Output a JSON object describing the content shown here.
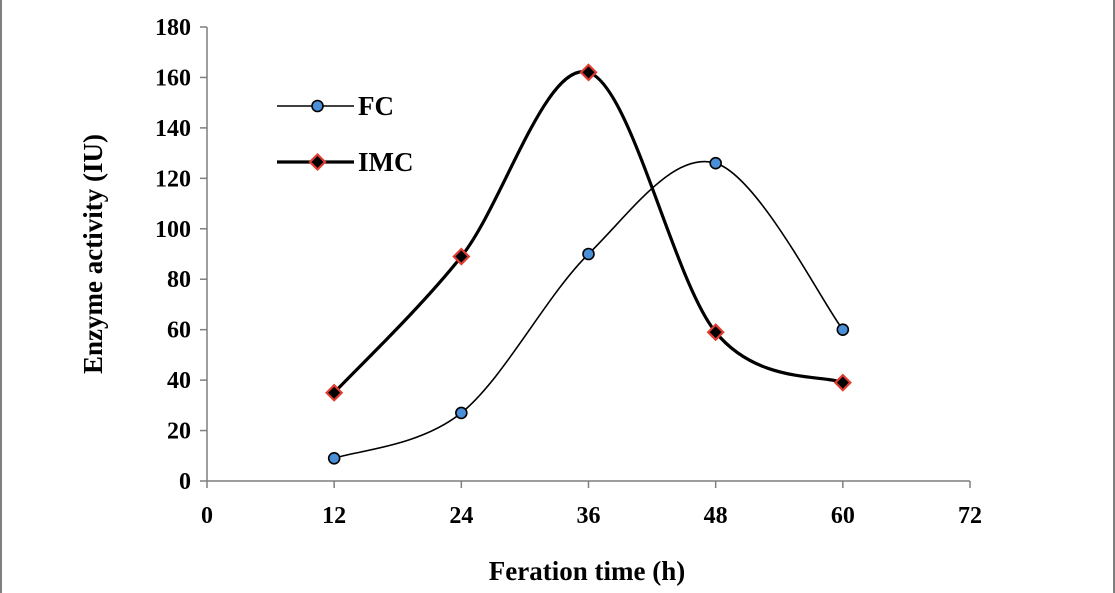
{
  "chart_data": {
    "type": "line",
    "title": "",
    "xlabel": "Feration time (h)",
    "ylabel": "Enzyme activity (IU)",
    "xlim": [
      0,
      72
    ],
    "ylim": [
      0,
      180
    ],
    "xticks": [
      0,
      12,
      24,
      36,
      48,
      60,
      72
    ],
    "yticks": [
      0,
      20,
      40,
      60,
      80,
      100,
      120,
      140,
      160,
      180
    ],
    "x": [
      12,
      24,
      36,
      48,
      60
    ],
    "grid": false,
    "legend_position": "top-left",
    "smooth": true,
    "series": [
      {
        "name": "FC",
        "values": [
          9,
          27,
          90,
          126,
          60
        ],
        "marker": "circle",
        "marker_color": "#4a90d9",
        "line_color": "#000000"
      },
      {
        "name": "IMC",
        "values": [
          35,
          89,
          162,
          59,
          39
        ],
        "marker": "diamond",
        "marker_color": "#e03c31",
        "line_color": "#000000"
      }
    ]
  }
}
